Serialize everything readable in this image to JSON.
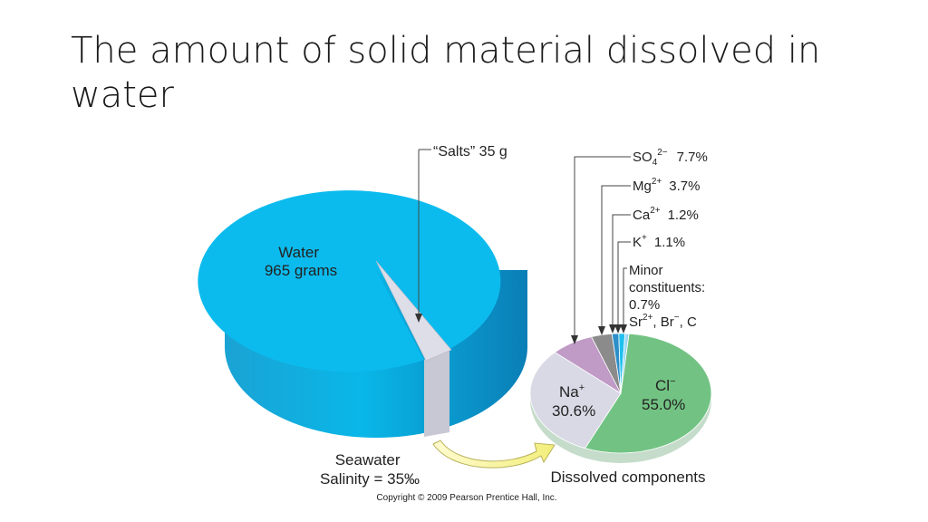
{
  "slide": {
    "title": "The amount of solid material dissolved in water"
  },
  "chart_data": [
    {
      "type": "pie",
      "unit": "grams",
      "slices": [
        {
          "label_lines": [
            "Water",
            "965 grams"
          ],
          "value": 965,
          "color": "#0cbbee"
        },
        {
          "label_lines": [
            "“Salts” 35 g"
          ],
          "value": 35,
          "color": "#d2d2dd"
        }
      ],
      "caption_lines": [
        "Seawater",
        "Salinity = 35‰"
      ]
    },
    {
      "type": "pie",
      "unit": "percent",
      "slices": [
        {
          "name": "Cl",
          "superscript": "−",
          "pct_label": "55.0%",
          "value": 55.0,
          "color": "#72c383"
        },
        {
          "name": "Na",
          "superscript": "+",
          "pct_label": "30.6%",
          "value": 30.6,
          "color": "#d9d9e6"
        },
        {
          "name": "SO",
          "subscript": "4",
          "superscript": "2−",
          "pct_label": "7.7%",
          "value": 7.7,
          "color": "#bf9bc6"
        },
        {
          "name": "Mg",
          "superscript": "2+",
          "pct_label": "3.7%",
          "value": 3.7,
          "color": "#8b8b8b"
        },
        {
          "name": "Ca",
          "superscript": "2+",
          "pct_label": "1.2%",
          "value": 1.2,
          "color": "#2d8fc8"
        },
        {
          "name": "K",
          "superscript": "+",
          "pct_label": "1.1%",
          "value": 1.1,
          "color": "#20c0ee"
        },
        {
          "name": "Minor constituents",
          "value": 0.7,
          "color": "#9ad7f2",
          "label_lines": [
            "Minor",
            "constituents:",
            "0.7%"
          ],
          "species": [
            {
              "name": "Sr",
              "superscript": "2+"
            },
            {
              "name": "Br",
              "superscript": "−"
            },
            {
              "name": "C"
            }
          ]
        }
      ],
      "caption": "Dissolved components"
    }
  ],
  "copyright": "Copyright © 2009 Pearson Prentice Hall, Inc."
}
